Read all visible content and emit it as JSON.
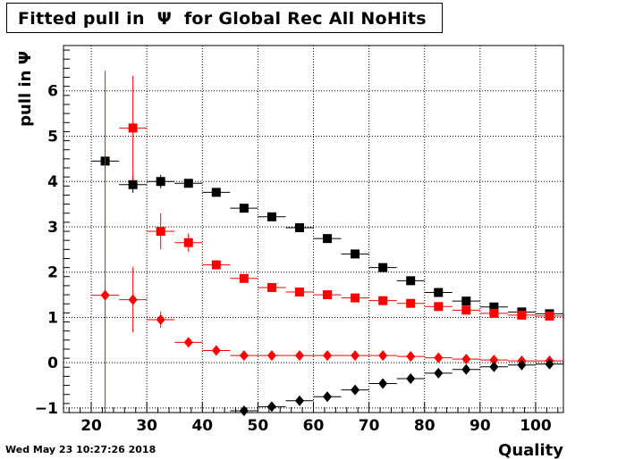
{
  "header": {
    "title": "Fitted pull in  Ψ  for Global Rec All NoHits"
  },
  "footer": {
    "timestamp": "Wed May 23 10:27:26 2018"
  },
  "chart_data": {
    "type": "scatter",
    "title": "Fitted pull in  Ψ  for Global Rec All NoHits",
    "xlabel": "Quality",
    "ylabel": "pull in  Ψ",
    "xlim": [
      15,
      105
    ],
    "ylim": [
      -1.1,
      7.0
    ],
    "grid": true,
    "x_ticks": [
      20,
      30,
      40,
      50,
      60,
      70,
      80,
      90,
      100
    ],
    "y_ticks": [
      -1,
      0,
      1,
      2,
      3,
      4,
      5,
      6
    ],
    "bin_half_width": 2.5,
    "series": [
      {
        "color": "#000000",
        "marker": "square",
        "points": [
          {
            "x": 22.5,
            "y": 4.45,
            "err": 0.0
          },
          {
            "x": 27.5,
            "y": 3.93,
            "err": 0.18
          },
          {
            "x": 32.5,
            "y": 4.0,
            "err": 0.15
          },
          {
            "x": 37.5,
            "y": 3.96,
            "err": 0.06
          },
          {
            "x": 42.5,
            "y": 3.76,
            "err": 0.04
          },
          {
            "x": 47.5,
            "y": 3.41,
            "err": 0.03
          },
          {
            "x": 52.5,
            "y": 3.22,
            "err": 0.02
          },
          {
            "x": 57.5,
            "y": 2.98,
            "err": 0.02
          },
          {
            "x": 62.5,
            "y": 2.74,
            "err": 0.02
          },
          {
            "x": 67.5,
            "y": 2.4,
            "err": 0.02
          },
          {
            "x": 72.5,
            "y": 2.1,
            "err": 0.02
          },
          {
            "x": 77.5,
            "y": 1.81,
            "err": 0.02
          },
          {
            "x": 82.5,
            "y": 1.55,
            "err": 0.02
          },
          {
            "x": 87.5,
            "y": 1.36,
            "err": 0.02
          },
          {
            "x": 92.5,
            "y": 1.23,
            "err": 0.02
          },
          {
            "x": 97.5,
            "y": 1.12,
            "err": 0.02
          },
          {
            "x": 102.5,
            "y": 1.08,
            "err": 0.02
          }
        ]
      },
      {
        "color": "#ff0000",
        "marker": "square",
        "points": [
          {
            "x": 27.5,
            "y": 5.18,
            "err": 1.15
          },
          {
            "x": 32.5,
            "y": 2.9,
            "err": 0.4
          },
          {
            "x": 37.5,
            "y": 2.65,
            "err": 0.2
          },
          {
            "x": 42.5,
            "y": 2.16,
            "err": 0.06
          },
          {
            "x": 47.5,
            "y": 1.86,
            "err": 0.04
          },
          {
            "x": 52.5,
            "y": 1.66,
            "err": 0.03
          },
          {
            "x": 57.5,
            "y": 1.56,
            "err": 0.02
          },
          {
            "x": 62.5,
            "y": 1.5,
            "err": 0.02
          },
          {
            "x": 67.5,
            "y": 1.43,
            "err": 0.02
          },
          {
            "x": 72.5,
            "y": 1.37,
            "err": 0.02
          },
          {
            "x": 77.5,
            "y": 1.31,
            "err": 0.02
          },
          {
            "x": 82.5,
            "y": 1.24,
            "err": 0.02
          },
          {
            "x": 87.5,
            "y": 1.16,
            "err": 0.02
          },
          {
            "x": 92.5,
            "y": 1.09,
            "err": 0.02
          },
          {
            "x": 97.5,
            "y": 1.05,
            "err": 0.02
          },
          {
            "x": 102.5,
            "y": 1.03,
            "err": 0.02
          }
        ]
      },
      {
        "color": "#ff0000",
        "marker": "diamond",
        "points": [
          {
            "x": 22.5,
            "y": 1.49,
            "err": 4.95
          },
          {
            "x": 27.5,
            "y": 1.39,
            "err": 0.72
          },
          {
            "x": 32.5,
            "y": 0.95,
            "err": 0.18
          },
          {
            "x": 37.5,
            "y": 0.45,
            "err": 0.05
          },
          {
            "x": 42.5,
            "y": 0.27,
            "err": 0.03
          },
          {
            "x": 47.5,
            "y": 0.16,
            "err": 0.02
          },
          {
            "x": 52.5,
            "y": 0.16,
            "err": 0.02
          },
          {
            "x": 57.5,
            "y": 0.16,
            "err": 0.02
          },
          {
            "x": 62.5,
            "y": 0.16,
            "err": 0.02
          },
          {
            "x": 67.5,
            "y": 0.16,
            "err": 0.02
          },
          {
            "x": 72.5,
            "y": 0.16,
            "err": 0.02
          },
          {
            "x": 77.5,
            "y": 0.14,
            "err": 0.02
          },
          {
            "x": 82.5,
            "y": 0.11,
            "err": 0.02
          },
          {
            "x": 87.5,
            "y": 0.08,
            "err": 0.02
          },
          {
            "x": 92.5,
            "y": 0.06,
            "err": 0.02
          },
          {
            "x": 97.5,
            "y": 0.04,
            "err": 0.02
          },
          {
            "x": 102.5,
            "y": 0.04,
            "err": 0.02
          }
        ]
      },
      {
        "color": "#000000",
        "marker": "diamond",
        "points": [
          {
            "x": 47.5,
            "y": -1.06,
            "err": 0.02
          },
          {
            "x": 52.5,
            "y": -0.97,
            "err": 0.02
          },
          {
            "x": 57.5,
            "y": -0.84,
            "err": 0.02
          },
          {
            "x": 62.5,
            "y": -0.75,
            "err": 0.02
          },
          {
            "x": 67.5,
            "y": -0.6,
            "err": 0.02
          },
          {
            "x": 72.5,
            "y": -0.46,
            "err": 0.02
          },
          {
            "x": 77.5,
            "y": -0.35,
            "err": 0.02
          },
          {
            "x": 82.5,
            "y": -0.23,
            "err": 0.02
          },
          {
            "x": 87.5,
            "y": -0.15,
            "err": 0.02
          },
          {
            "x": 92.5,
            "y": -0.09,
            "err": 0.02
          },
          {
            "x": 97.5,
            "y": -0.05,
            "err": 0.02
          },
          {
            "x": 102.5,
            "y": -0.03,
            "err": 0.02
          }
        ]
      }
    ]
  }
}
